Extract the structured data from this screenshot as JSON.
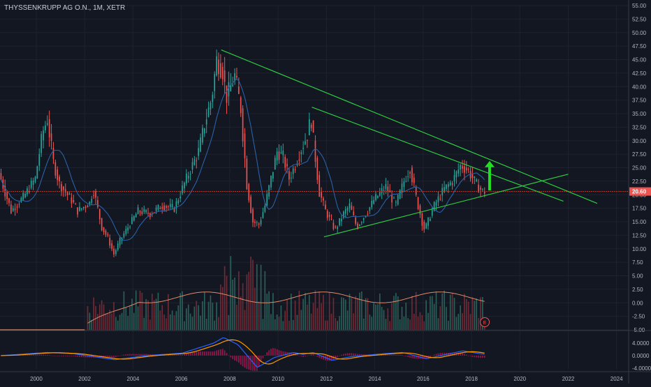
{
  "header": {
    "symbol_title": "THYSSENKRUPP AG O.N., 1M, XETR"
  },
  "colors": {
    "background": "#131722",
    "grid": "#1e2230",
    "up": "#26a69a",
    "down": "#ef5350",
    "ma": "#2962a8",
    "trendline": "#2ecc40",
    "arrow": "#22dd22",
    "price_line": "#c0392b",
    "macd": "#2962ff",
    "signal": "#ff9800",
    "hist_up": "#2a5e57",
    "hist_down": "#6e2a35",
    "vol_ma": "#e08a6a"
  },
  "price_axis": {
    "labels": [
      "55.00",
      "52.50",
      "50.00",
      "47.50",
      "45.00",
      "42.50",
      "40.00",
      "37.50",
      "35.00",
      "32.50",
      "30.00",
      "27.50",
      "25.00",
      "22.50",
      "20.00",
      "17.50",
      "15.00",
      "12.50",
      "10.00",
      "7.50",
      "5.00",
      "2.50",
      "0.00",
      "-2.50",
      "-5.00"
    ],
    "last_price_tag": "20.60"
  },
  "macd_axis": {
    "labels": [
      "4.0000",
      "0.0000",
      "-4.0000"
    ]
  },
  "time_axis": {
    "labels": [
      "2000",
      "2002",
      "2004",
      "2006",
      "2008",
      "2010",
      "2012",
      "2014",
      "2016",
      "2018",
      "2020",
      "2022",
      "2024"
    ]
  },
  "badges": {
    "earnings": "E"
  },
  "chart_data": {
    "type": "candlestick",
    "title": "THYSSENKRUPP AG O.N., 1M, XETR",
    "interval": "monthly",
    "ylim": [
      -5,
      55
    ],
    "xlim": [
      1998.5,
      2024.5
    ],
    "last_price": 20.6,
    "price_anchors": [
      [
        1998.5,
        24.0
      ],
      [
        1999.0,
        17.0
      ],
      [
        1999.5,
        19.5
      ],
      [
        2000.0,
        23.0
      ],
      [
        2000.3,
        31.5
      ],
      [
        2000.5,
        34.0
      ],
      [
        2000.75,
        26.0
      ],
      [
        2001.0,
        22.0
      ],
      [
        2001.5,
        19.0
      ],
      [
        2001.75,
        17.0
      ],
      [
        2002.25,
        18.5
      ],
      [
        2002.4,
        21.0
      ],
      [
        2002.75,
        14.0
      ],
      [
        2003.0,
        12.0
      ],
      [
        2003.25,
        9.0
      ],
      [
        2003.5,
        11.5
      ],
      [
        2003.9,
        14.5
      ],
      [
        2004.25,
        17.0
      ],
      [
        2004.75,
        16.5
      ],
      [
        2005.25,
        18.0
      ],
      [
        2005.75,
        17.5
      ],
      [
        2006.25,
        23.0
      ],
      [
        2006.75,
        28.0
      ],
      [
        2007.0,
        33.0
      ],
      [
        2007.3,
        38.0
      ],
      [
        2007.5,
        45.0
      ],
      [
        2007.75,
        43.0
      ],
      [
        2007.9,
        38.0
      ],
      [
        2008.25,
        42.0
      ],
      [
        2008.5,
        36.0
      ],
      [
        2008.75,
        22.0
      ],
      [
        2009.0,
        15.0
      ],
      [
        2009.25,
        14.5
      ],
      [
        2009.5,
        18.0
      ],
      [
        2009.75,
        23.0
      ],
      [
        2010.0,
        28.0
      ],
      [
        2010.25,
        27.0
      ],
      [
        2010.5,
        23.0
      ],
      [
        2010.75,
        25.5
      ],
      [
        2011.0,
        28.5
      ],
      [
        2011.25,
        31.0
      ],
      [
        2011.4,
        34.5
      ],
      [
        2011.5,
        30.0
      ],
      [
        2011.75,
        20.5
      ],
      [
        2012.0,
        17.0
      ],
      [
        2012.4,
        13.5
      ],
      [
        2012.75,
        16.5
      ],
      [
        2013.0,
        18.0
      ],
      [
        2013.3,
        14.0
      ],
      [
        2013.75,
        17.0
      ],
      [
        2014.0,
        19.0
      ],
      [
        2014.5,
        21.5
      ],
      [
        2014.9,
        18.0
      ],
      [
        2015.25,
        22.5
      ],
      [
        2015.5,
        25.0
      ],
      [
        2015.75,
        19.5
      ],
      [
        2016.0,
        15.0
      ],
      [
        2016.1,
        13.5
      ],
      [
        2016.5,
        18.0
      ],
      [
        2016.9,
        21.0
      ],
      [
        2017.25,
        22.5
      ],
      [
        2017.6,
        25.5
      ],
      [
        2017.9,
        24.5
      ],
      [
        2018.1,
        23.0
      ],
      [
        2018.3,
        21.5
      ],
      [
        2018.5,
        20.6
      ]
    ],
    "macd_anchors": [
      [
        1998.5,
        0.0
      ],
      [
        2000.4,
        1.0
      ],
      [
        2001.5,
        0.6
      ],
      [
        2003.2,
        -1.3
      ],
      [
        2004.5,
        0.0
      ],
      [
        2006.0,
        0.8
      ],
      [
        2007.3,
        4.0
      ],
      [
        2007.7,
        5.8
      ],
      [
        2008.3,
        3.5
      ],
      [
        2009.1,
        -3.8
      ],
      [
        2009.8,
        -0.6
      ],
      [
        2010.6,
        1.0
      ],
      [
        2011.0,
        0.4
      ],
      [
        2011.4,
        1.0
      ],
      [
        2012.2,
        -1.5
      ],
      [
        2013.0,
        -0.3
      ],
      [
        2014.3,
        0.6
      ],
      [
        2015.1,
        1.0
      ],
      [
        2016.1,
        -1.0
      ],
      [
        2016.8,
        0.2
      ],
      [
        2017.6,
        1.5
      ],
      [
        2018.5,
        0.4
      ]
    ],
    "trendlines": [
      {
        "x1": 2007.65,
        "y1": 46.8,
        "x2": 2023.2,
        "y2": 18.4
      },
      {
        "x1": 2011.4,
        "y1": 36.2,
        "x2": 2021.8,
        "y2": 18.8
      },
      {
        "x1": 2011.9,
        "y1": 12.2,
        "x2": 2022.0,
        "y2": 23.8
      }
    ],
    "arrow": {
      "x": 2018.75,
      "from": 20.8,
      "to": 26.0
    },
    "series": [
      {
        "values_note": "monthly OHLC candles with moving average, volume-style histogram and MACD subpanel"
      }
    ]
  }
}
